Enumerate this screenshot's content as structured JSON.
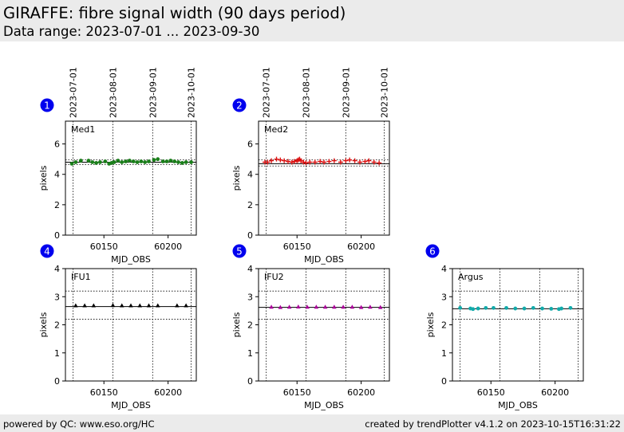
{
  "header": {
    "title": "GIRAFFE: fibre signal width (90 days period)",
    "subtitle": "Data range: 2023-07-01 ... 2023-09-30"
  },
  "footer": {
    "left": "powered by QC: www.eso.org/HC",
    "right": "created by trendPlotter v4.1.2 on 2023-10-15T16:31:22"
  },
  "colors": {
    "badge": "#0000ee",
    "panel_bg": "#ffffff",
    "header_bg": "#ebebeb"
  },
  "date_ticks": [
    {
      "mjd": 60126,
      "label": "2023-07-01"
    },
    {
      "mjd": 60157,
      "label": "2023-08-01"
    },
    {
      "mjd": 60188,
      "label": "2023-09-01"
    },
    {
      "mjd": 60218,
      "label": "2023-10-01"
    }
  ],
  "chart_data": [
    {
      "type": "scatter",
      "badge": "1",
      "label": "Med1",
      "xlabel": "MJD_OBS",
      "ylabel": "pixels",
      "xlim": [
        60120,
        60222
      ],
      "ylim": [
        0,
        7.5
      ],
      "xticks": [
        60150,
        60200
      ],
      "yticks": [
        0,
        2,
        4,
        6
      ],
      "ref_solid": 4.8,
      "ref_dotted": [
        4.65,
        4.95
      ],
      "color": "#1a7f1a",
      "marker": "dot",
      "x": [
        60125,
        60128,
        60132,
        60138,
        60141,
        60144,
        60147,
        60151,
        60154,
        60156,
        60158,
        60161,
        60164,
        60167,
        60170,
        60173,
        60176,
        60179,
        60182,
        60185,
        60189,
        60192,
        60196,
        60199,
        60202,
        60205,
        60208,
        60211,
        60214,
        60218
      ],
      "y": [
        4.7,
        4.8,
        4.9,
        4.9,
        4.8,
        4.75,
        4.8,
        4.85,
        4.7,
        4.75,
        4.8,
        4.9,
        4.8,
        4.85,
        4.9,
        4.85,
        4.8,
        4.85,
        4.8,
        4.85,
        4.95,
        5.0,
        4.85,
        4.85,
        4.9,
        4.85,
        4.8,
        4.75,
        4.8,
        4.8
      ]
    },
    {
      "type": "scatter",
      "badge": "2",
      "label": "Med2",
      "xlabel": "MJD_OBS",
      "ylabel": "pixels",
      "xlim": [
        60120,
        60222
      ],
      "ylim": [
        0,
        7.5
      ],
      "xticks": [
        60150,
        60200
      ],
      "yticks": [
        0,
        2,
        4,
        6
      ],
      "ref_solid": 4.7,
      "ref_dotted": [
        4.55,
        4.95
      ],
      "color": "#dd1111",
      "marker": "plus",
      "x": [
        60125,
        60127,
        60130,
        60134,
        60137,
        60140,
        60143,
        60146,
        60148,
        60150,
        60151,
        60152,
        60153,
        60155,
        60157,
        60160,
        60164,
        60168,
        60171,
        60175,
        60179,
        60184,
        60188,
        60191,
        60195,
        60199,
        60203,
        60206,
        60210,
        60214
      ],
      "y": [
        4.8,
        4.8,
        4.9,
        5.0,
        4.95,
        4.9,
        4.85,
        4.8,
        4.85,
        4.9,
        4.95,
        5.0,
        4.9,
        4.8,
        4.75,
        4.8,
        4.8,
        4.85,
        4.8,
        4.85,
        4.9,
        4.8,
        4.9,
        4.95,
        4.9,
        4.8,
        4.85,
        4.9,
        4.8,
        4.75
      ]
    },
    {
      "type": "scatter",
      "badge": "4",
      "label": "IFU1",
      "xlabel": "MJD_OBS",
      "ylabel": "pixels",
      "xlim": [
        60120,
        60222
      ],
      "ylim": [
        0,
        4
      ],
      "xticks": [
        60150,
        60200
      ],
      "yticks": [
        0,
        1,
        2,
        3,
        4
      ],
      "ref_solid": 2.65,
      "ref_dotted": [
        2.2,
        3.2
      ],
      "color": "#000000",
      "marker": "triangle",
      "x": [
        60128,
        60135,
        60142,
        60157,
        60164,
        60171,
        60178,
        60185,
        60192,
        60207,
        60214
      ],
      "y": [
        2.68,
        2.68,
        2.68,
        2.69,
        2.68,
        2.68,
        2.68,
        2.68,
        2.68,
        2.68,
        2.68
      ]
    },
    {
      "type": "scatter",
      "badge": "5",
      "label": "IFU2",
      "xlabel": "MJD_OBS",
      "ylabel": "pixels",
      "xlim": [
        60120,
        60222
      ],
      "ylim": [
        0,
        4
      ],
      "xticks": [
        60150,
        60200
      ],
      "yticks": [
        0,
        1,
        2,
        3,
        4
      ],
      "ref_solid": 2.62,
      "ref_dotted": [
        2.2,
        3.2
      ],
      "color": "#aa0099",
      "marker": "triangle",
      "x": [
        60130,
        60137,
        60144,
        60151,
        60158,
        60165,
        60172,
        60179,
        60186,
        60193,
        60200,
        60207,
        60215
      ],
      "y": [
        2.63,
        2.62,
        2.63,
        2.64,
        2.63,
        2.63,
        2.63,
        2.63,
        2.63,
        2.63,
        2.62,
        2.63,
        2.62
      ]
    },
    {
      "type": "scatter",
      "badge": "6",
      "label": "Argus",
      "xlabel": "MJD_OBS",
      "ylabel": "pixels",
      "xlim": [
        60120,
        60222
      ],
      "ylim": [
        0,
        4
      ],
      "xticks": [
        60150,
        60200
      ],
      "yticks": [
        0,
        1,
        2,
        3,
        4
      ],
      "ref_solid": 2.57,
      "ref_dotted": [
        2.2,
        3.2
      ],
      "color": "#11aaaa",
      "marker": "dot",
      "x": [
        60126,
        60134,
        60136,
        60140,
        60146,
        60152,
        60162,
        60169,
        60176,
        60183,
        60190,
        60197,
        60203,
        60205,
        60212
      ],
      "y": [
        2.6,
        2.58,
        2.56,
        2.58,
        2.6,
        2.6,
        2.6,
        2.58,
        2.58,
        2.6,
        2.58,
        2.57,
        2.56,
        2.58,
        2.6
      ]
    }
  ]
}
